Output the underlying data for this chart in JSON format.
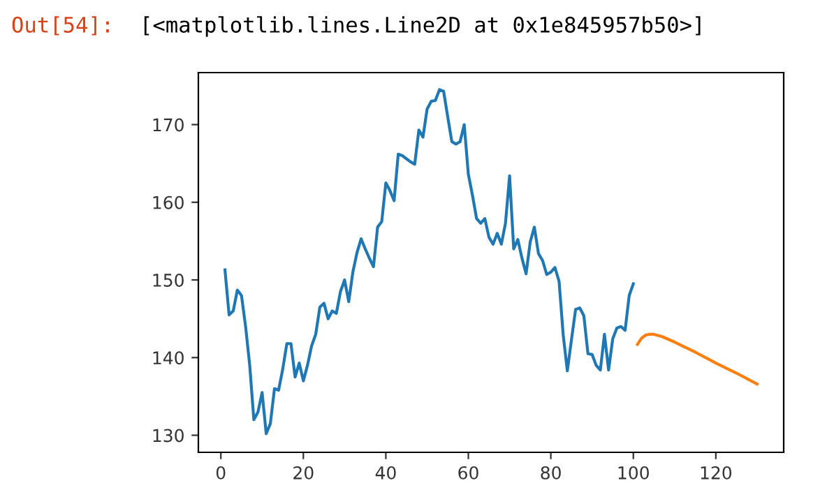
{
  "chart_data": {
    "type": "line",
    "annotations": [
      "Out[54]:",
      "[<matplotlib.lines.Line2D at 0x1e845957b50>]"
    ],
    "xlim": [
      -5.45,
      136.45
    ],
    "xticks": [
      0,
      20,
      40,
      60,
      80,
      100,
      120
    ],
    "ylim": [
      127.8,
      176.7
    ],
    "yticks": [
      130,
      140,
      150,
      160,
      170
    ],
    "series": [
      {
        "color": "#1f77b4",
        "x": [
          1,
          2,
          3,
          4,
          5,
          6,
          7,
          8,
          9,
          10,
          11,
          12,
          13,
          14,
          15,
          16,
          17,
          18,
          19,
          20,
          21,
          22,
          23,
          24,
          25,
          26,
          27,
          28,
          29,
          30,
          31,
          32,
          33,
          34,
          35,
          36,
          37,
          38,
          39,
          40,
          41,
          42,
          43,
          44,
          45,
          46,
          47,
          48,
          49,
          50,
          51,
          52,
          53,
          54,
          55,
          56,
          57,
          58,
          59,
          60,
          61,
          62,
          63,
          64,
          65,
          66,
          67,
          68,
          69,
          70,
          71,
          72,
          73,
          74,
          75,
          76,
          77,
          78,
          79,
          80,
          81,
          82,
          83,
          84,
          85,
          86,
          87,
          88,
          89,
          90,
          91,
          92,
          93,
          94,
          95,
          96,
          97,
          98,
          99,
          100
        ],
        "values": [
          151.3,
          145.5,
          146,
          148.7,
          148,
          144,
          139,
          132,
          133,
          135.5,
          130.2,
          131.5,
          136,
          135.8,
          138.5,
          141.8,
          141.8,
          137.5,
          139.3,
          137,
          139,
          141.5,
          143,
          146.5,
          147,
          145,
          146,
          145.7,
          148.5,
          150,
          147.2,
          151,
          153.5,
          155.3,
          154,
          152.8,
          151.7,
          156.8,
          157.5,
          162.5,
          161.5,
          160.2,
          166.2,
          166,
          165.6,
          165.2,
          164.9,
          169.3,
          168.4,
          172,
          173,
          173.1,
          174.5,
          174.3,
          171,
          167.8,
          167.5,
          167.8,
          170,
          163.6,
          160.9,
          157.9,
          157.3,
          157.9,
          155.5,
          154.6,
          156,
          154.6,
          157.3,
          163.4,
          154,
          155.2,
          152.8,
          150.8,
          154.9,
          156.8,
          153.4,
          152.5,
          150.7,
          151,
          151.6,
          149.8,
          142.9,
          138.3,
          142.3,
          146.2,
          146.4,
          145.4,
          140.5,
          140.4,
          139,
          138.4,
          143,
          138.4,
          142.4,
          143.8,
          144,
          143.5,
          148,
          149.5
        ]
      },
      {
        "color": "#ff7f0e",
        "x": [
          101,
          102,
          103,
          104,
          105,
          107,
          110,
          115,
          120,
          125,
          130
        ],
        "values": [
          141.7,
          142.5,
          142.9,
          143.0,
          143.0,
          142.7,
          142.0,
          140.7,
          139.3,
          138.0,
          136.6
        ]
      }
    ]
  }
}
